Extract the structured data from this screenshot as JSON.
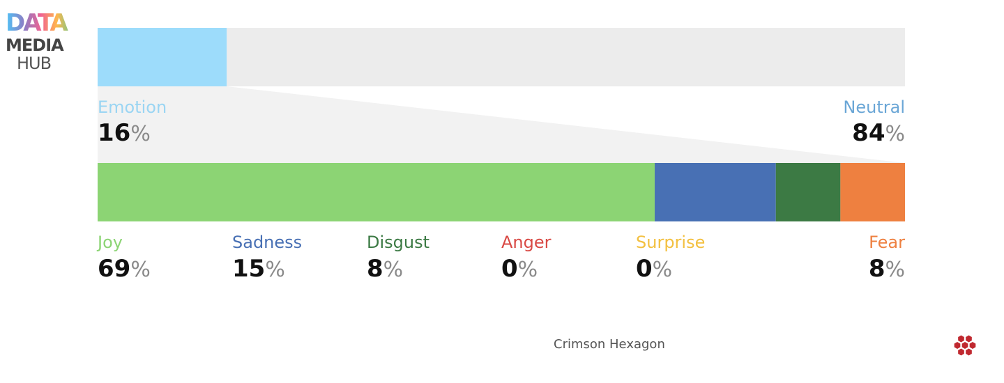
{
  "chart_data": {
    "type": "bar",
    "top": {
      "segments": [
        {
          "name": "Emotion",
          "value": 16,
          "color": "#9ddcfb",
          "label_color": "#9ad5f3"
        },
        {
          "name": "Neutral",
          "value": 84,
          "color": "#ececec",
          "label_color": "#6aa6d6"
        }
      ]
    },
    "bottom": {
      "segments": [
        {
          "name": "Joy",
          "value": 69,
          "color": "#8cd474",
          "label_color": "#8cd474"
        },
        {
          "name": "Sadness",
          "value": 15,
          "color": "#4870b4",
          "label_color": "#4870b4"
        },
        {
          "name": "Disgust",
          "value": 8,
          "color": "#3c7a44",
          "label_color": "#3c7a44"
        },
        {
          "name": "Anger",
          "value": 0,
          "color": "#d94a45",
          "label_color": "#d94a45"
        },
        {
          "name": "Surprise",
          "value": 0,
          "color": "#f3c040",
          "label_color": "#f3c040"
        },
        {
          "name": "Fear",
          "value": 8,
          "color": "#ee8040",
          "label_color": "#ee8040"
        }
      ]
    },
    "percent_sign": "%"
  },
  "logo": {
    "line1": "DATA",
    "line2": "MEDIA",
    "line3": "HUB"
  },
  "footer": {
    "text": "Crimson Hexagon",
    "icon": "hexagon-cluster-icon",
    "icon_color": "#c0282f"
  }
}
